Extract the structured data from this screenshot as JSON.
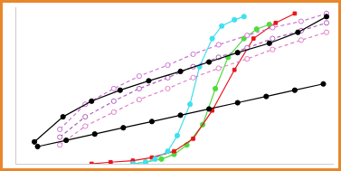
{
  "chart_data": {
    "type": "line",
    "xlim": [
      0,
      100
    ],
    "ylim": [
      0,
      100
    ],
    "grid": false,
    "tick_labels": false,
    "series": [
      {
        "color": "#000000",
        "marker": "filled_circle",
        "line_style": "solid",
        "x": [
          7,
          16,
          25,
          34,
          43,
          52,
          61,
          70,
          79,
          88,
          97
        ],
        "values": [
          11,
          15,
          19,
          23,
          27,
          31,
          35,
          39,
          43,
          47,
          51
        ]
      },
      {
        "color": "#000000",
        "marker": "filled_circle",
        "line_style": "solid",
        "x": [
          6,
          15,
          24,
          33,
          42,
          52,
          61,
          70,
          80,
          89,
          98
        ],
        "values": [
          14,
          30,
          40,
          47,
          53,
          59,
          65,
          71,
          77,
          84,
          94
        ]
      },
      {
        "color": "#d070d8",
        "marker": "open_circle",
        "line_style": "dashed",
        "x": [
          14,
          22,
          31,
          39,
          48,
          56,
          64,
          73,
          81,
          90,
          98
        ],
        "values": [
          22,
          38,
          48,
          56,
          63,
          70,
          76,
          82,
          87,
          91,
          96
        ]
      },
      {
        "color": "#b060c0",
        "marker": "open_circle",
        "line_style": "dashed",
        "x": [
          14,
          22,
          31,
          39,
          48,
          56,
          64,
          73,
          81,
          90,
          98
        ],
        "values": [
          17,
          30,
          40,
          48,
          55,
          62,
          68,
          74,
          80,
          85,
          90
        ]
      },
      {
        "color": "#e080c8",
        "marker": "open_circle",
        "line_style": "dashed",
        "x": [
          14,
          22,
          31,
          39,
          48,
          56,
          64,
          73,
          81,
          90,
          98
        ],
        "values": [
          12,
          24,
          33,
          41,
          48,
          55,
          61,
          67,
          73,
          79,
          84
        ]
      },
      {
        "color": "#40e0f0",
        "marker": "filled_circle",
        "line_style": "solid",
        "x": [
          37,
          41,
          44,
          48,
          51,
          55,
          58,
          62,
          65,
          69,
          72
        ],
        "values": [
          0,
          1,
          3,
          8,
          18,
          38,
          62,
          80,
          88,
          92,
          94
        ]
      },
      {
        "color": "#e8141c",
        "marker": "square",
        "line_style": "solid",
        "x": [
          24,
          30,
          37,
          43,
          50,
          56,
          62,
          69,
          75,
          82,
          88
        ],
        "values": [
          0,
          1,
          2,
          4,
          8,
          16,
          34,
          60,
          80,
          90,
          96
        ]
      },
      {
        "color": "#4cdc3c",
        "marker": "filled_circle",
        "line_style": "solid",
        "x": [
          37,
          41,
          46,
          50,
          54,
          59,
          63,
          67,
          72,
          76,
          80
        ],
        "values": [
          0,
          1,
          3,
          6,
          12,
          25,
          48,
          68,
          80,
          86,
          89
        ]
      }
    ]
  }
}
